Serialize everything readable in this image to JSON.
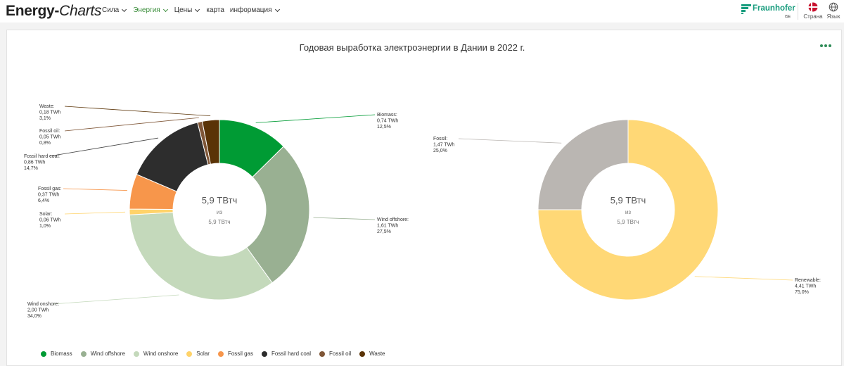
{
  "header": {
    "logo": {
      "part1": "Energy-",
      "part2": "Charts"
    },
    "nav": [
      {
        "label": "Сила",
        "active": false,
        "chevron": true
      },
      {
        "label": "Энергия",
        "active": true,
        "chevron": true
      },
      {
        "label": "Цены",
        "active": false,
        "chevron": true
      },
      {
        "label": "карта",
        "active": false,
        "chevron": false
      },
      {
        "label": "информация",
        "active": false,
        "chevron": true
      }
    ],
    "brand": {
      "name": "Fraunhofer",
      "sub": "ISE"
    },
    "country_label": "Страна",
    "language_label": "Язык"
  },
  "title": "Годовая выработка электроэнергии в Дании в 2022 г.",
  "colors": {
    "Biomass": "#009b34",
    "Wind offshore": "#99b092",
    "Wind onshore": "#c4d9bb",
    "Solar": "#ffd36a",
    "Fossil gas": "#f7964b",
    "Fossil hard coal": "#2d2d2d",
    "Fossil oil": "#7f5637",
    "Waste": "#5a3306",
    "Fossil": "#bab6b2",
    "Renewable": "#ffd876"
  },
  "chart_data": [
    {
      "type": "pie",
      "donut": true,
      "center": {
        "value": "5,9 ТВтч",
        "of": "из",
        "total": "5,9 ТВтч"
      },
      "unit": "TWh",
      "slices": [
        {
          "name": "Biomass",
          "value": 0.74,
          "value_label": "0,74 TWh",
          "percent": "12,5%"
        },
        {
          "name": "Wind offshore",
          "value": 1.61,
          "value_label": "1,61 TWh",
          "percent": "27,5%"
        },
        {
          "name": "Wind onshore",
          "value": 2.0,
          "value_label": "2,00 TWh",
          "percent": "34,0%"
        },
        {
          "name": "Solar",
          "value": 0.06,
          "value_label": "0,06 TWh",
          "percent": "1,0%"
        },
        {
          "name": "Fossil gas",
          "value": 0.37,
          "value_label": "0,37 TWh",
          "percent": "6,4%"
        },
        {
          "name": "Fossil hard coal",
          "value": 0.86,
          "value_label": "0,86 TWh",
          "percent": "14,7%"
        },
        {
          "name": "Fossil oil",
          "value": 0.05,
          "value_label": "0,05 TWh",
          "percent": "0,8%"
        },
        {
          "name": "Waste",
          "value": 0.18,
          "value_label": "0,18 TWh",
          "percent": "3,1%"
        }
      ],
      "legend_position": "bottom"
    },
    {
      "type": "pie",
      "donut": true,
      "center": {
        "value": "5,9 ТВтч",
        "of": "из",
        "total": "5,9 ТВтч"
      },
      "unit": "TWh",
      "slices": [
        {
          "name": "Renewable",
          "value": 4.41,
          "value_label": "4,41 TWh",
          "percent": "75,0%"
        },
        {
          "name": "Fossil",
          "value": 1.47,
          "value_label": "1,47 TWh",
          "percent": "25,0%"
        }
      ]
    }
  ],
  "legend": [
    "Biomass",
    "Wind offshore",
    "Wind onshore",
    "Solar",
    "Fossil gas",
    "Fossil hard coal",
    "Fossil oil",
    "Waste"
  ]
}
